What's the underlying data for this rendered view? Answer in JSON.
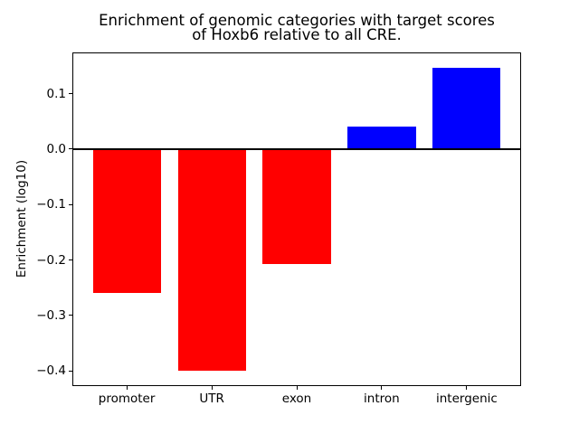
{
  "figure": {
    "title_line1": "Enrichment of genomic categories with target scores",
    "title_line2": "of Hoxb6 relative to all CRE.",
    "ylabel": "Enrichment (log10)"
  },
  "chart_data": {
    "type": "bar",
    "title": "Enrichment of genomic categories with target scores\nof Hoxb6 relative to all CRE.",
    "xlabel": "",
    "ylabel": "Enrichment (log10)",
    "categories": [
      "promoter",
      "UTR",
      "exon",
      "intron",
      "intergenic"
    ],
    "values": [
      -0.259,
      -0.399,
      -0.207,
      0.04,
      0.147
    ],
    "bar_colors": [
      "#ff0000",
      "#ff0000",
      "#ff0000",
      "#0000ff",
      "#0000ff"
    ],
    "negative_color": "#ff0000",
    "positive_color": "#0000ff",
    "yticks": [
      0.1,
      0.0,
      -0.1,
      -0.2,
      -0.3,
      -0.4
    ],
    "ytick_labels": [
      "0.1",
      "0.0",
      "−0.1",
      "−0.2",
      "−0.3",
      "−0.4"
    ],
    "ylim": [
      -0.4274,
      0.1744
    ],
    "zero_line": true,
    "grid": false,
    "legend_position": "none",
    "axis_color": "#000000",
    "background_color": "#ffffff"
  }
}
